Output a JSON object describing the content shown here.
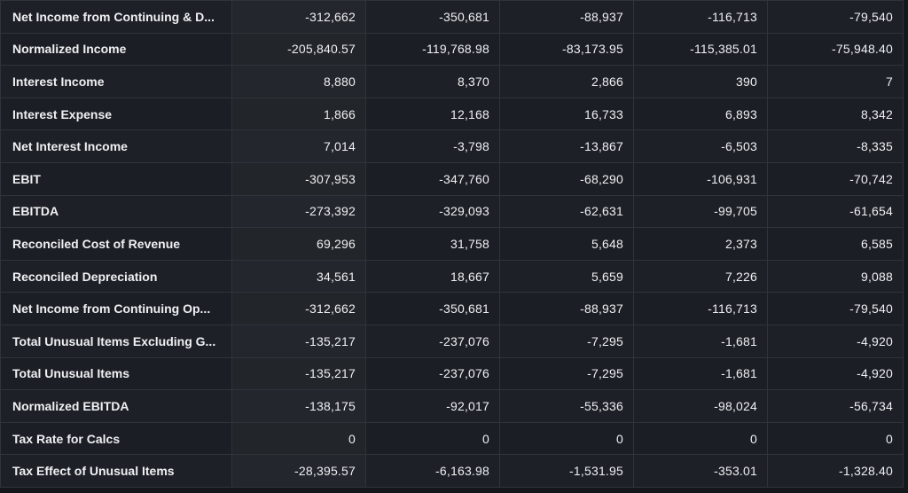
{
  "table": {
    "rows": [
      {
        "label": "Net Income from Continuing & D...",
        "values": [
          "-312,662",
          "-350,681",
          "-88,937",
          "-116,713",
          "-79,540"
        ]
      },
      {
        "label": "Normalized Income",
        "values": [
          "-205,840.57",
          "-119,768.98",
          "-83,173.95",
          "-115,385.01",
          "-75,948.40"
        ]
      },
      {
        "label": "Interest Income",
        "values": [
          "8,880",
          "8,370",
          "2,866",
          "390",
          "7"
        ]
      },
      {
        "label": "Interest Expense",
        "values": [
          "1,866",
          "12,168",
          "16,733",
          "6,893",
          "8,342"
        ]
      },
      {
        "label": "Net Interest Income",
        "values": [
          "7,014",
          "-3,798",
          "-13,867",
          "-6,503",
          "-8,335"
        ]
      },
      {
        "label": "EBIT",
        "values": [
          "-307,953",
          "-347,760",
          "-68,290",
          "-106,931",
          "-70,742"
        ]
      },
      {
        "label": "EBITDA",
        "values": [
          "-273,392",
          "-329,093",
          "-62,631",
          "-99,705",
          "-61,654"
        ]
      },
      {
        "label": "Reconciled Cost of Revenue",
        "values": [
          "69,296",
          "31,758",
          "5,648",
          "2,373",
          "6,585"
        ]
      },
      {
        "label": "Reconciled Depreciation",
        "values": [
          "34,561",
          "18,667",
          "5,659",
          "7,226",
          "9,088"
        ]
      },
      {
        "label": "Net Income from Continuing Op...",
        "values": [
          "-312,662",
          "-350,681",
          "-88,937",
          "-116,713",
          "-79,540"
        ]
      },
      {
        "label": "Total Unusual Items Excluding G...",
        "values": [
          "-135,217",
          "-237,076",
          "-7,295",
          "-1,681",
          "-4,920"
        ]
      },
      {
        "label": "Total Unusual Items",
        "values": [
          "-135,217",
          "-237,076",
          "-7,295",
          "-1,681",
          "-4,920"
        ]
      },
      {
        "label": "Normalized EBITDA",
        "values": [
          "-138,175",
          "-92,017",
          "-55,336",
          "-98,024",
          "-56,734"
        ]
      },
      {
        "label": "Tax Rate for Calcs",
        "values": [
          "0",
          "0",
          "0",
          "0",
          "0"
        ]
      },
      {
        "label": "Tax Effect of Unusual Items",
        "values": [
          "-28,395.57",
          "-6,163.98",
          "-1,531.95",
          "-353.01",
          "-1,328.40"
        ]
      }
    ]
  },
  "colors": {
    "background": "#14171c",
    "cell": "#1d2026",
    "border": "#2f343b",
    "text": "#eef0f3"
  }
}
